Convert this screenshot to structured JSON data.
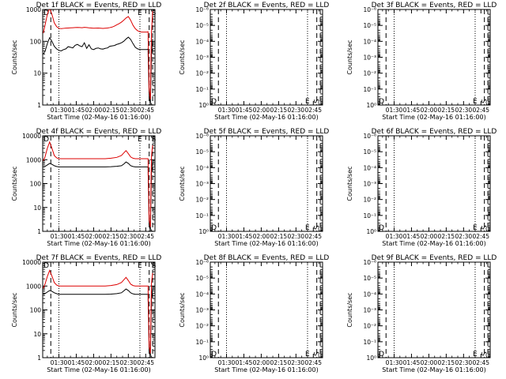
{
  "figure": {
    "background": "#ffffff"
  },
  "chart_data": [
    {
      "panel": 1,
      "type": "line",
      "title": "Det 1f BLACK = Events, RED = LLD",
      "xlabel": "Start Time (02-May-16 01:16:00)",
      "ylabel": "Counts/sec",
      "yscale": "log",
      "ylim": [
        1,
        1000
      ],
      "yticks": [
        1,
        10,
        100,
        1000
      ],
      "yticklabels": [
        "1",
        "10",
        "100",
        "1000"
      ],
      "xlim": [
        76,
        173
      ],
      "xticks": [
        90,
        105,
        120,
        135,
        150,
        165
      ],
      "xticklabels": [
        "01:30",
        "01:45",
        "02:00",
        "02:15",
        "02:30",
        "02:45"
      ],
      "markers": [
        "D",
        "E",
        "S"
      ],
      "grid": false,
      "series": [
        {
          "name": "Events",
          "color": "#000000",
          "x": [
            76.5,
            78,
            80,
            82,
            84,
            86,
            88,
            90,
            92,
            94,
            96,
            98,
            100,
            102,
            104,
            106,
            108,
            110,
            112,
            114,
            116,
            118,
            120,
            122,
            124,
            126,
            128,
            130,
            132,
            134,
            136,
            138,
            140,
            142,
            144,
            146,
            148,
            150,
            152,
            154,
            156,
            158,
            160,
            162,
            164,
            166,
            167,
            168,
            169,
            170,
            171
          ],
          "y": [
            40,
            48,
            85,
            130,
            100,
            70,
            58,
            52,
            50,
            55,
            58,
            68,
            65,
            62,
            75,
            80,
            72,
            68,
            90,
            60,
            78,
            58,
            55,
            60,
            62,
            58,
            57,
            60,
            62,
            70,
            72,
            74,
            80,
            84,
            90,
            100,
            118,
            135,
            115,
            85,
            65,
            58,
            55,
            55,
            55,
            55,
            57,
            2,
            1,
            40,
            120
          ]
        },
        {
          "name": "LLD",
          "color": "#dd0000",
          "x": [
            76.5,
            78,
            80,
            82,
            84,
            86,
            88,
            90,
            92,
            94,
            96,
            98,
            100,
            102,
            104,
            106,
            108,
            110,
            112,
            114,
            116,
            118,
            120,
            122,
            124,
            126,
            128,
            130,
            132,
            134,
            136,
            138,
            140,
            142,
            144,
            146,
            148,
            150,
            152,
            154,
            156,
            158,
            160,
            162,
            164,
            166,
            167,
            168,
            169,
            170,
            171
          ],
          "y": [
            180,
            320,
            700,
            1100,
            700,
            380,
            290,
            255,
            250,
            255,
            260,
            262,
            265,
            268,
            270,
            272,
            270,
            268,
            275,
            270,
            265,
            262,
            258,
            260,
            262,
            258,
            255,
            258,
            262,
            270,
            280,
            300,
            330,
            360,
            400,
            460,
            540,
            600,
            460,
            320,
            250,
            215,
            200,
            195,
            195,
            195,
            200,
            3,
            1.5,
            200,
            900
          ]
        }
      ]
    },
    {
      "panel": 2,
      "type": "line",
      "title": "Det 2f BLACK = Events, RED = LLD",
      "xlabel": "Start Time (02-May-16 01:16:00)",
      "ylabel": "Counts/sec",
      "yscale": "log",
      "ylim": [
        1,
        1e-06
      ],
      "yticks": [
        1,
        0.1,
        0.01,
        0.001,
        0.0001,
        1e-05,
        1e-06
      ],
      "yticklabels": [
        "10⁰",
        "10⁻¹",
        "10⁻²",
        "10⁻³",
        "10⁻⁴",
        "10⁻⁵",
        "10⁻⁶"
      ],
      "xlim": [
        76,
        173
      ],
      "xticks": [
        90,
        105,
        120,
        135,
        150,
        165
      ],
      "xticklabels": [
        "01:30",
        "01:45",
        "02:00",
        "02:15",
        "02:30",
        "02:45"
      ],
      "markers": [
        "D",
        "E",
        "S"
      ],
      "grid": false,
      "series": []
    },
    {
      "panel": 3,
      "type": "line",
      "title": "Det 3f BLACK = Events, RED = LLD",
      "xlabel": "Start Time (02-May-16 01:16:00)",
      "ylabel": "Counts/sec",
      "yscale": "log",
      "ylim": [
        1,
        1e-06
      ],
      "yticks": [
        1,
        0.1,
        0.01,
        0.001,
        0.0001,
        1e-05,
        1e-06
      ],
      "yticklabels": [
        "10⁰",
        "10⁻¹",
        "10⁻²",
        "10⁻³",
        "10⁻⁴",
        "10⁻⁵",
        "10⁻⁶"
      ],
      "xlim": [
        76,
        173
      ],
      "xticks": [
        90,
        105,
        120,
        135,
        150,
        165
      ],
      "xticklabels": [
        "01:30",
        "01:45",
        "02:00",
        "02:15",
        "02:30",
        "02:45"
      ],
      "markers": [
        "D",
        "E",
        "S"
      ],
      "grid": false,
      "series": []
    },
    {
      "panel": 4,
      "type": "line",
      "title": "Det 4f BLACK = Events, RED = LLD",
      "xlabel": "Start Time (02-May-16 01:16:00)",
      "ylabel": "Counts/sec",
      "yscale": "log",
      "ylim": [
        1,
        10000
      ],
      "yticks": [
        1,
        10,
        100,
        1000,
        10000
      ],
      "yticklabels": [
        "1",
        "10",
        "100",
        "1000",
        "10000"
      ],
      "xlim": [
        76,
        173
      ],
      "xticks": [
        90,
        105,
        120,
        135,
        150,
        165
      ],
      "xticklabels": [
        "01:30",
        "01:45",
        "02:00",
        "02:15",
        "02:30",
        "02:45"
      ],
      "markers": [
        "D",
        "E",
        "S"
      ],
      "grid": false,
      "series": [
        {
          "name": "Events",
          "color": "#000000",
          "x": [
            76.5,
            78,
            80,
            82,
            84,
            86,
            88,
            90,
            95,
            100,
            105,
            110,
            115,
            120,
            125,
            130,
            135,
            140,
            144,
            146,
            148,
            150,
            152,
            154,
            156,
            160,
            164,
            166,
            167,
            168,
            169,
            170,
            171
          ],
          "y": [
            500,
            520,
            600,
            700,
            640,
            560,
            520,
            500,
            500,
            500,
            500,
            500,
            500,
            500,
            500,
            500,
            510,
            530,
            560,
            650,
            800,
            700,
            560,
            520,
            500,
            500,
            500,
            500,
            500,
            2,
            1,
            300,
            900
          ]
        },
        {
          "name": "LLD",
          "color": "#dd0000",
          "x": [
            76.5,
            78,
            80,
            82,
            84,
            86,
            88,
            90,
            95,
            100,
            105,
            110,
            115,
            120,
            125,
            130,
            135,
            140,
            144,
            146,
            148,
            150,
            152,
            154,
            156,
            160,
            164,
            166,
            167,
            168,
            169,
            170,
            171
          ],
          "y": [
            900,
            1300,
            3000,
            5500,
            3000,
            1500,
            1200,
            1100,
            1100,
            1100,
            1100,
            1100,
            1100,
            1100,
            1100,
            1100,
            1150,
            1250,
            1500,
            1900,
            2400,
            1800,
            1300,
            1150,
            1100,
            1100,
            1100,
            1100,
            1100,
            3,
            1.5,
            1500,
            4000
          ]
        }
      ]
    },
    {
      "panel": 5,
      "type": "line",
      "title": "Det 5f BLACK = Events, RED = LLD",
      "xlabel": "Start Time (02-May-16 01:16:00)",
      "ylabel": "Counts/sec",
      "yscale": "log",
      "ylim": [
        1,
        1e-06
      ],
      "yticks": [
        1,
        0.1,
        0.01,
        0.001,
        0.0001,
        1e-05,
        1e-06
      ],
      "yticklabels": [
        "10⁰",
        "10⁻¹",
        "10⁻²",
        "10⁻³",
        "10⁻⁴",
        "10⁻⁵",
        "10⁻⁶"
      ],
      "xlim": [
        76,
        173
      ],
      "xticks": [
        90,
        105,
        120,
        135,
        150,
        165
      ],
      "xticklabels": [
        "01:30",
        "01:45",
        "02:00",
        "02:15",
        "02:30",
        "02:45"
      ],
      "markers": [
        "D",
        "E",
        "S"
      ],
      "grid": false,
      "series": []
    },
    {
      "panel": 6,
      "type": "line",
      "title": "Det 6f BLACK = Events, RED = LLD",
      "xlabel": "Start Time (02-May-16 01:16:00)",
      "ylabel": "Counts/sec",
      "yscale": "log",
      "ylim": [
        1,
        1e-06
      ],
      "yticks": [
        1,
        0.1,
        0.01,
        0.001,
        0.0001,
        1e-05,
        1e-06
      ],
      "yticklabels": [
        "10⁰",
        "10⁻¹",
        "10⁻²",
        "10⁻³",
        "10⁻⁴",
        "10⁻⁵",
        "10⁻⁶"
      ],
      "xlim": [
        76,
        173
      ],
      "xticks": [
        90,
        105,
        120,
        135,
        150,
        165
      ],
      "xticklabels": [
        "01:30",
        "01:45",
        "02:00",
        "02:15",
        "02:30",
        "02:45"
      ],
      "markers": [
        "D",
        "E",
        "S"
      ],
      "grid": false,
      "series": []
    },
    {
      "panel": 7,
      "type": "line",
      "title": "Det 7f BLACK = Events, RED = LLD",
      "xlabel": "Start Time (02-May-16 01:16:00)",
      "ylabel": "Counts/sec",
      "yscale": "log",
      "ylim": [
        1,
        10000
      ],
      "yticks": [
        1,
        10,
        100,
        1000,
        10000
      ],
      "yticklabels": [
        "1",
        "10",
        "100",
        "1000",
        "10000"
      ],
      "xlim": [
        76,
        173
      ],
      "xticks": [
        90,
        105,
        120,
        135,
        150,
        165
      ],
      "xticklabels": [
        "01:30",
        "01:45",
        "02:00",
        "02:15",
        "02:30",
        "02:45"
      ],
      "markers": [
        "D",
        "E",
        "S"
      ],
      "grid": false,
      "series": [
        {
          "name": "Events",
          "color": "#000000",
          "x": [
            76.5,
            78,
            80,
            82,
            84,
            86,
            88,
            90,
            95,
            100,
            105,
            110,
            115,
            120,
            125,
            130,
            135,
            140,
            144,
            146,
            148,
            150,
            152,
            154,
            156,
            160,
            164,
            166,
            167,
            168,
            169,
            170,
            171
          ],
          "y": [
            450,
            480,
            560,
            650,
            600,
            520,
            480,
            450,
            450,
            450,
            450,
            450,
            450,
            450,
            450,
            450,
            460,
            480,
            520,
            620,
            750,
            650,
            520,
            470,
            450,
            450,
            450,
            450,
            450,
            2,
            1,
            300,
            800
          ]
        },
        {
          "name": "LLD",
          "color": "#dd0000",
          "x": [
            76.5,
            78,
            80,
            82,
            84,
            86,
            88,
            90,
            95,
            100,
            105,
            110,
            115,
            120,
            125,
            130,
            135,
            140,
            144,
            146,
            148,
            150,
            152,
            154,
            156,
            160,
            164,
            166,
            167,
            168,
            169,
            170,
            171
          ],
          "y": [
            800,
            1200,
            2500,
            4500,
            2600,
            1400,
            1100,
            1000,
            1000,
            1000,
            1000,
            1000,
            1000,
            1000,
            1000,
            1000,
            1050,
            1150,
            1400,
            1800,
            2300,
            1700,
            1200,
            1050,
            1000,
            1000,
            1000,
            1000,
            1000,
            3,
            1.5,
            1400,
            3500
          ]
        }
      ]
    },
    {
      "panel": 8,
      "type": "line",
      "title": "Det 8f BLACK = Events, RED = LLD",
      "xlabel": "Start Time (02-May-16 01:16:00)",
      "ylabel": "Counts/sec",
      "yscale": "log",
      "ylim": [
        1,
        1e-06
      ],
      "yticks": [
        1,
        0.1,
        0.01,
        0.001,
        0.0001,
        1e-05,
        1e-06
      ],
      "yticklabels": [
        "10⁰",
        "10⁻¹",
        "10⁻²",
        "10⁻³",
        "10⁻⁴",
        "10⁻⁵",
        "10⁻⁶"
      ],
      "xlim": [
        76,
        173
      ],
      "xticks": [
        90,
        105,
        120,
        135,
        150,
        165
      ],
      "xticklabels": [
        "01:30",
        "01:45",
        "02:00",
        "02:15",
        "02:30",
        "02:45"
      ],
      "markers": [
        "D",
        "E",
        "S"
      ],
      "grid": false,
      "series": []
    },
    {
      "panel": 9,
      "type": "line",
      "title": "Det 9f BLACK = Events, RED = LLD",
      "xlabel": "Start Time (02-May-16 01:16:00)",
      "ylabel": "Counts/sec",
      "yscale": "log",
      "ylim": [
        1,
        1e-06
      ],
      "yticks": [
        1,
        0.1,
        0.01,
        0.001,
        0.0001,
        1e-05,
        1e-06
      ],
      "yticklabels": [
        "10⁰",
        "10⁻¹",
        "10⁻²",
        "10⁻³",
        "10⁻⁴",
        "10⁻⁵",
        "10⁻⁶"
      ],
      "xlim": [
        76,
        173
      ],
      "xticks": [
        90,
        105,
        120,
        135,
        150,
        165
      ],
      "xticklabels": [
        "01:30",
        "01:45",
        "02:00",
        "02:15",
        "02:30",
        "02:45"
      ],
      "markers": [
        "D",
        "E",
        "S"
      ],
      "grid": false,
      "series": []
    }
  ]
}
